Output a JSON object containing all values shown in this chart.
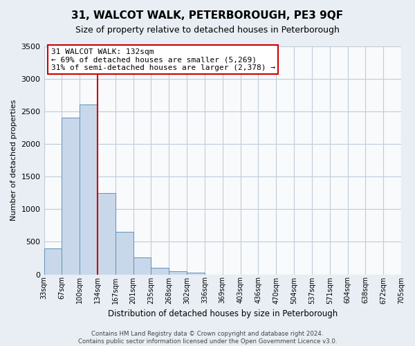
{
  "title": "31, WALCOT WALK, PETERBOROUGH, PE3 9QF",
  "subtitle": "Size of property relative to detached houses in Peterborough",
  "xlabel": "Distribution of detached houses by size in Peterborough",
  "ylabel": "Number of detached properties",
  "bar_values": [
    400,
    2400,
    2600,
    1250,
    650,
    260,
    100,
    50,
    30,
    0,
    0,
    0,
    0,
    0,
    0,
    0,
    0,
    0,
    0,
    0
  ],
  "bin_labels": [
    "33sqm",
    "67sqm",
    "100sqm",
    "134sqm",
    "167sqm",
    "201sqm",
    "235sqm",
    "268sqm",
    "302sqm",
    "336sqm",
    "369sqm",
    "403sqm",
    "436sqm",
    "470sqm",
    "504sqm",
    "537sqm",
    "571sqm",
    "604sqm",
    "638sqm",
    "672sqm",
    "705sqm"
  ],
  "ylim": [
    0,
    3500
  ],
  "yticks": [
    0,
    500,
    1000,
    1500,
    2000,
    2500,
    3000,
    3500
  ],
  "bar_color": "#c8d8ea",
  "bar_edge_color": "#6090b8",
  "vline_x_bin": 3,
  "vline_color": "#cc0000",
  "annotation_text": "31 WALCOT WALK: 132sqm\n← 69% of detached houses are smaller (5,269)\n31% of semi-detached houses are larger (2,378) →",
  "annotation_box_color": "#ffffff",
  "annotation_box_edge_color": "#cc0000",
  "footer_line1": "Contains HM Land Registry data © Crown copyright and database right 2024.",
  "footer_line2": "Contains public sector information licensed under the Open Government Licence v3.0.",
  "background_color": "#e8eef4",
  "plot_bg_color": "#f8fafc",
  "grid_color": "#c0ccd8"
}
